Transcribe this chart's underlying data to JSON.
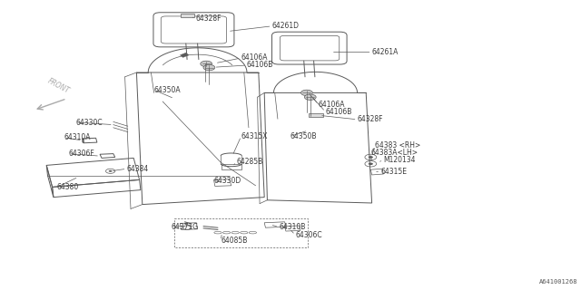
{
  "background_color": "#ffffff",
  "diagram_id": "A641001268",
  "line_color": "#5a5a5a",
  "label_color": "#3a3a3a",
  "front_color": "#aaaaaa",
  "font_size": 5.5,
  "lw": 0.7,
  "labels": {
    "64328F_top": [
      0.337,
      0.935,
      "64328F"
    ],
    "64261D": [
      0.468,
      0.91,
      "64261D"
    ],
    "64106A_L": [
      0.415,
      0.8,
      "64106A"
    ],
    "64106B_L": [
      0.425,
      0.775,
      "64106B"
    ],
    "64261A": [
      0.64,
      0.82,
      "64261A"
    ],
    "64350A": [
      0.265,
      0.69,
      "64350A"
    ],
    "64330C": [
      0.13,
      0.578,
      "64330C"
    ],
    "64310A": [
      0.11,
      0.525,
      "64310A"
    ],
    "64306F": [
      0.118,
      0.47,
      "64306F"
    ],
    "64384": [
      0.218,
      0.418,
      "64384"
    ],
    "64380": [
      0.098,
      0.355,
      "64380"
    ],
    "64315X": [
      0.415,
      0.53,
      "64315X"
    ],
    "64350B": [
      0.5,
      0.53,
      "64350B"
    ],
    "64285B": [
      0.407,
      0.442,
      "64285B"
    ],
    "64330D": [
      0.368,
      0.378,
      "64330D"
    ],
    "64106A_R": [
      0.548,
      0.64,
      "64106A"
    ],
    "64106B_R": [
      0.56,
      0.615,
      "64106B"
    ],
    "64328F_R": [
      0.615,
      0.588,
      "64328F"
    ],
    "64383RH": [
      0.645,
      0.498,
      "64383 <RH>"
    ],
    "64383ALH": [
      0.638,
      0.472,
      "64383A<LH>"
    ],
    "M120134": [
      0.66,
      0.448,
      "M120134"
    ],
    "64315E": [
      0.655,
      0.408,
      "64315E"
    ],
    "64371G": [
      0.295,
      0.218,
      "64371G"
    ],
    "64085B": [
      0.38,
      0.17,
      "64085B"
    ],
    "64310B": [
      0.48,
      0.218,
      "64310B"
    ],
    "64306C": [
      0.508,
      0.19,
      "64306C"
    ]
  }
}
